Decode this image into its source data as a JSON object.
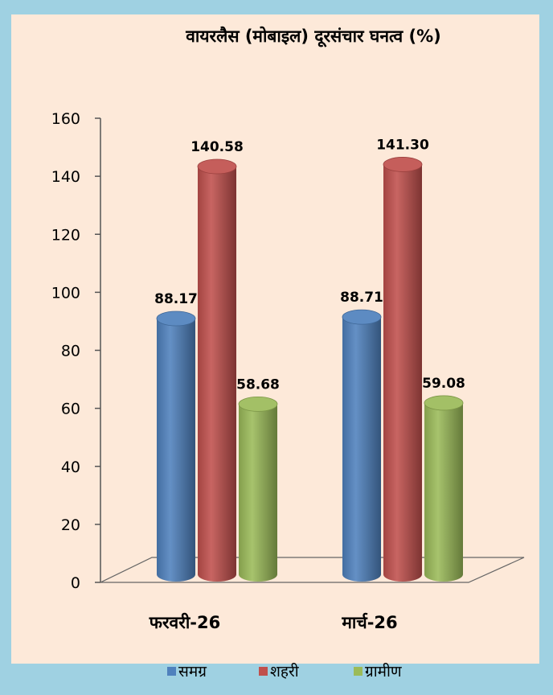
{
  "chart_data": {
    "type": "bar",
    "title": "वायरलैस (मोबाइल) दूरसंचार घनत्व (%)",
    "categories": [
      "फरवरी-26",
      "मार्च-26"
    ],
    "series": [
      {
        "name": "समग्र",
        "values": [
          88.17,
          88.71
        ],
        "labels": [
          "88.17",
          "88.71"
        ]
      },
      {
        "name": "शहरी",
        "values": [
          140.58,
          141.3
        ],
        "labels": [
          "140.58",
          "141.30"
        ]
      },
      {
        "name": "ग्रामीण",
        "values": [
          58.68,
          59.08
        ],
        "labels": [
          "58.68",
          "59.08"
        ]
      }
    ],
    "ylim": [
      0,
      160
    ],
    "yticks": [
      "0",
      "20",
      "40",
      "60",
      "80",
      "100",
      "120",
      "140",
      "160"
    ],
    "legend_position": "bottom",
    "style": "3d-cylinder"
  },
  "colors": {
    "outer_background": "#9fd1e2",
    "plot_background": "#fde9d9",
    "series": [
      "#4f81bd",
      "#c0504d",
      "#9bbb59"
    ]
  }
}
